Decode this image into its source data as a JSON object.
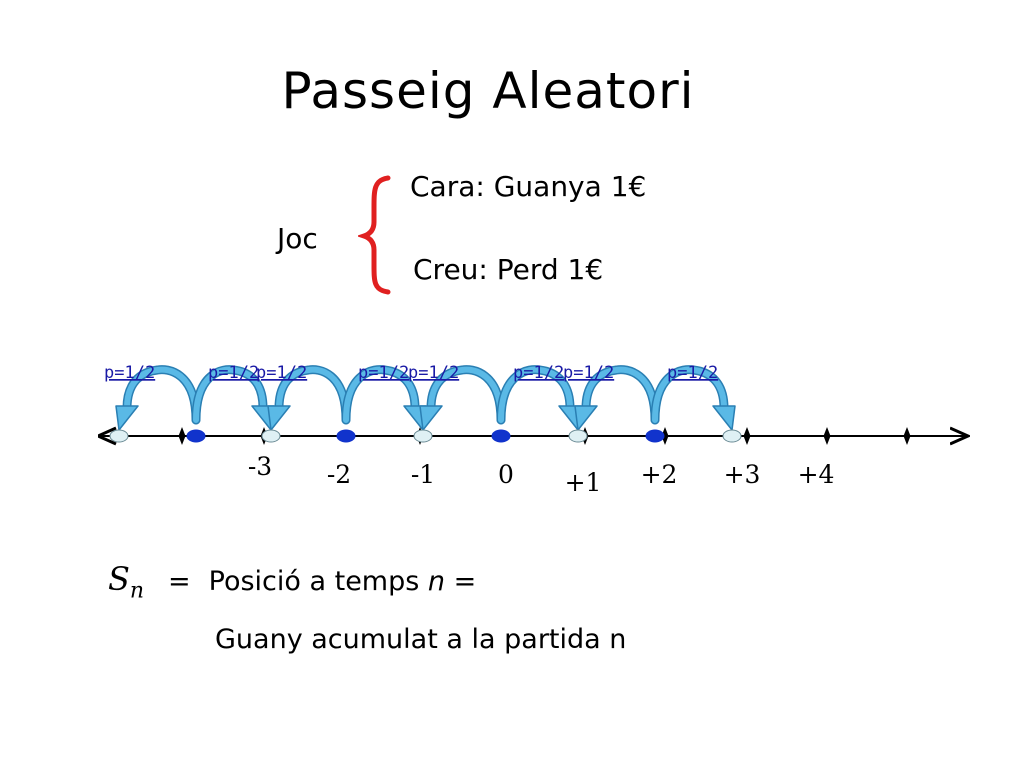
{
  "title": "Passeig Aleatori",
  "game": {
    "label": "Joc",
    "heads": "Cara: Guanya 1€",
    "tails": "Creu: Perd 1€"
  },
  "colors": {
    "brace": "#e02020",
    "arrow_fill": "#5ab9e6",
    "arrow_stroke": "#2a7fb3",
    "dot_blue": "#1133cc",
    "dot_light": "#dff0f4",
    "label_blue": "#1a1aa6"
  },
  "transitions": [
    {
      "label": "p=1/2"
    },
    {
      "label": "p=1/2"
    },
    {
      "label": "p=1/2"
    },
    {
      "label": "p=1/2"
    },
    {
      "label": "p=1/2"
    },
    {
      "label": "p=1/2"
    },
    {
      "label": "p=1/2"
    },
    {
      "label": "p=1/2"
    }
  ],
  "axis_labels": [
    "-3",
    "-2",
    "-1",
    "0",
    "+1",
    "+2",
    "+3",
    "+4"
  ],
  "definition": {
    "symbol": "S",
    "subscript": "n",
    "eq": "=",
    "line1_text": "Posició a temps ",
    "line1_var": "n",
    "line1_end": " =",
    "line2": "Guany acumulat a la partida n"
  }
}
